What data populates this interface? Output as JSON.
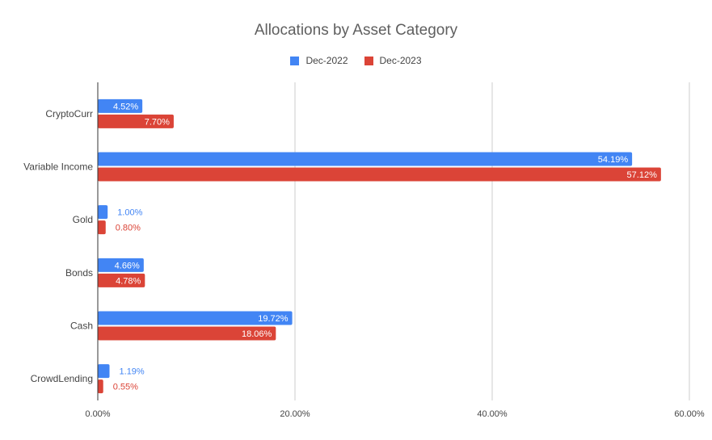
{
  "chart_data": {
    "type": "bar",
    "orientation": "horizontal",
    "title": "Allocations by Asset Category",
    "categories": [
      "CryptoCurr",
      "Variable Income",
      "Gold",
      "Bonds",
      "Cash",
      "CrowdLending"
    ],
    "series": [
      {
        "name": "Dec-2022",
        "color": "#4285F4",
        "values": [
          4.52,
          54.19,
          1.0,
          4.66,
          19.72,
          1.19
        ],
        "labels": [
          "4.52%",
          "54.19%",
          "1.00%",
          "4.66%",
          "19.72%",
          "1.19%"
        ]
      },
      {
        "name": "Dec-2023",
        "color": "#DB4437",
        "values": [
          7.7,
          57.12,
          0.8,
          4.78,
          18.06,
          0.55
        ],
        "labels": [
          "7.70%",
          "57.12%",
          "0.80%",
          "4.78%",
          "18.06%",
          "0.55%"
        ]
      }
    ],
    "xlim": [
      0,
      60
    ],
    "xticks": [
      0,
      20,
      40,
      60
    ],
    "xtick_labels": [
      "0.00%",
      "20.00%",
      "40.00%",
      "60.00%"
    ],
    "grid": true,
    "legend_position": "top"
  }
}
